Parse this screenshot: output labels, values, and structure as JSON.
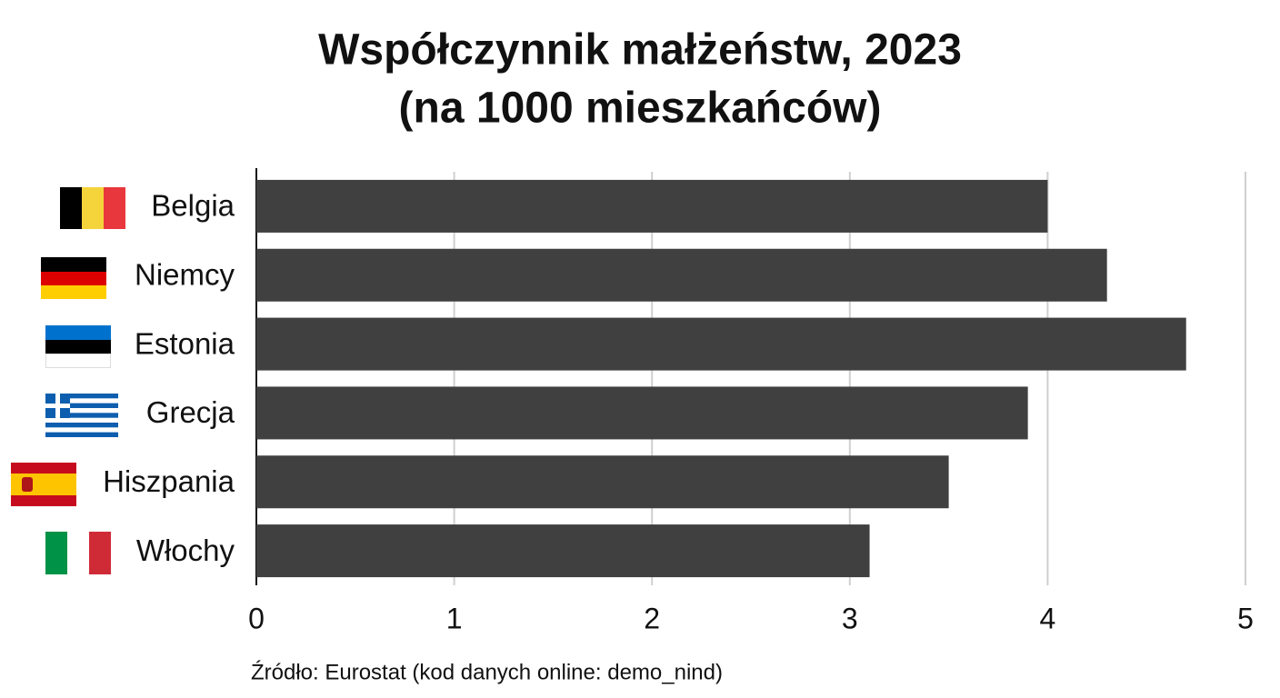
{
  "chart_data": {
    "type": "bar",
    "orientation": "horizontal",
    "title": "Współczynnik małżeństw, 2023",
    "subtitle": "(na 1000 mieszkańców)",
    "categories": [
      "Belgia",
      "Niemcy",
      "Estonia",
      "Grecja",
      "Hiszpania",
      "Włochy"
    ],
    "values": [
      4.0,
      4.3,
      4.7,
      3.9,
      3.5,
      3.1
    ],
    "color": "#404040",
    "xlim": [
      0,
      5
    ],
    "xticks": [
      0,
      1,
      2,
      3,
      4,
      5
    ],
    "grid": true,
    "source": "Źródło: Eurostat (kod danych online: demo_nind)"
  }
}
